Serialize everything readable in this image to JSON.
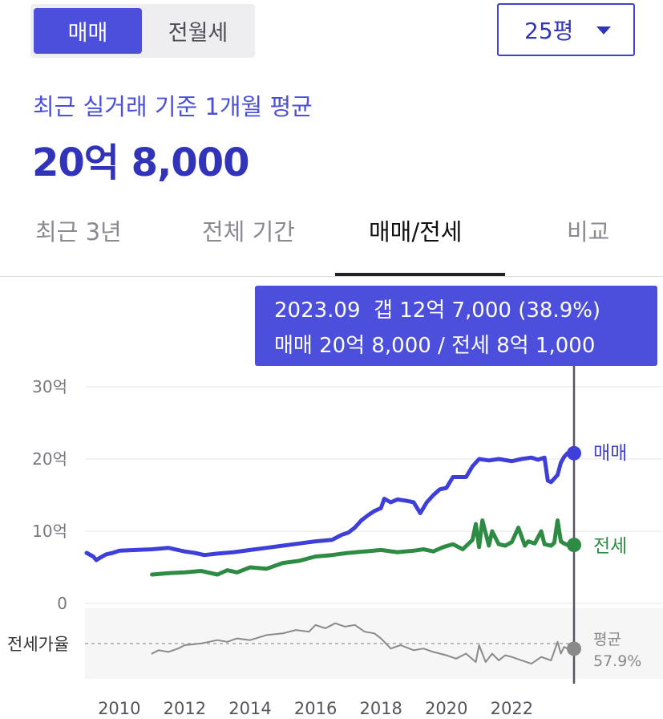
{
  "toggle": {
    "sale_label": "매매",
    "jeonse_label": "전월세"
  },
  "size_select": {
    "value": "25평"
  },
  "summary": {
    "subtitle": "최근 실거래 기준 1개월 평균",
    "price": "20억 8,000"
  },
  "tabs": [
    {
      "label": "최근 3년"
    },
    {
      "label": "전체 기간"
    },
    {
      "label": "매매/전세",
      "active": true
    },
    {
      "label": "비교"
    }
  ],
  "tooltip": {
    "line1": "2023.09  갭 12억 7,000 (38.9%)",
    "line2": "매매 20억 8,000 / 전세 8억 1,000"
  },
  "colors": {
    "sale": "#3d3fd8",
    "jeonse": "#2e8b43",
    "ratio": "#8a8a8a",
    "accent": "#4b4fdb"
  },
  "chart_data": {
    "type": "line",
    "y_unit": "억",
    "ylim": [
      0,
      30
    ],
    "yticks": [
      "30억",
      "20억",
      "10억",
      "0"
    ],
    "ytick_values": [
      30,
      20,
      10,
      0
    ],
    "xticks": [
      "2010",
      "2012",
      "2014",
      "2016",
      "2018",
      "2020",
      "2022"
    ],
    "xtick_values": [
      2010,
      2012,
      2014,
      2016,
      2018,
      2020,
      2022
    ],
    "xlim": [
      2009,
      2024
    ],
    "series": [
      {
        "name": "매매",
        "color": "#3d3fd8",
        "x": [
          2009.0,
          2009.2,
          2009.3,
          2009.4,
          2009.6,
          2009.8,
          2010.0,
          2010.5,
          2011.0,
          2011.5,
          2011.8,
          2012.0,
          2012.3,
          2012.6,
          2013.0,
          2013.5,
          2014.0,
          2014.5,
          2015.0,
          2015.5,
          2016.0,
          2016.5,
          2016.8,
          2017.0,
          2017.2,
          2017.4,
          2017.6,
          2017.8,
          2018.0,
          2018.1,
          2018.3,
          2018.5,
          2018.8,
          2019.0,
          2019.2,
          2019.4,
          2019.6,
          2019.8,
          2020.0,
          2020.2,
          2020.4,
          2020.6,
          2020.8,
          2021.0,
          2021.3,
          2021.6,
          2022.0,
          2022.3,
          2022.6,
          2022.8,
          2023.0,
          2023.1,
          2023.2,
          2023.4,
          2023.5,
          2023.6,
          2023.7
        ],
        "values": [
          7.0,
          6.5,
          6.0,
          6.3,
          6.8,
          7.0,
          7.3,
          7.4,
          7.5,
          7.7,
          7.4,
          7.2,
          7.0,
          6.7,
          6.9,
          7.1,
          7.4,
          7.7,
          8.0,
          8.3,
          8.6,
          8.8,
          9.5,
          9.8,
          10.5,
          11.5,
          12.2,
          12.8,
          13.2,
          14.5,
          14.0,
          14.4,
          14.2,
          14.0,
          12.5,
          14.0,
          15.0,
          15.8,
          16.0,
          17.5,
          17.5,
          17.5,
          19.0,
          20.0,
          19.8,
          20.0,
          19.7,
          20.0,
          20.2,
          19.9,
          20.2,
          17.0,
          16.8,
          17.8,
          19.5,
          20.3,
          20.8
        ]
      },
      {
        "name": "전세",
        "color": "#2e8b43",
        "x": [
          2011.0,
          2011.5,
          2012.0,
          2012.5,
          2013.0,
          2013.3,
          2013.6,
          2014.0,
          2014.5,
          2015.0,
          2015.5,
          2016.0,
          2016.5,
          2017.0,
          2017.5,
          2018.0,
          2018.5,
          2019.0,
          2019.3,
          2019.6,
          2019.9,
          2020.2,
          2020.5,
          2020.8,
          2020.9,
          2021.0,
          2021.1,
          2021.3,
          2021.4,
          2021.6,
          2021.8,
          2022.0,
          2022.2,
          2022.4,
          2022.5,
          2022.7,
          2022.9,
          2023.0,
          2023.2,
          2023.3,
          2023.4,
          2023.5,
          2023.6,
          2023.7
        ],
        "values": [
          4.0,
          4.2,
          4.3,
          4.5,
          4.0,
          4.6,
          4.3,
          5.0,
          4.8,
          5.6,
          5.9,
          6.5,
          6.7,
          7.0,
          7.2,
          7.4,
          7.1,
          7.3,
          7.5,
          7.2,
          7.8,
          8.2,
          7.5,
          8.8,
          11.0,
          7.8,
          11.5,
          8.0,
          10.0,
          8.2,
          8.0,
          8.5,
          10.5,
          8.0,
          8.6,
          8.3,
          10.0,
          8.2,
          8.0,
          8.4,
          11.5,
          8.6,
          8.3,
          8.1
        ]
      },
      {
        "name": "전세가율",
        "color": "#8a8a8a",
        "x": [
          2011.0,
          2011.2,
          2011.5,
          2011.8,
          2012.0,
          2012.5,
          2013.0,
          2013.3,
          2013.6,
          2014.0,
          2014.5,
          2015.0,
          2015.4,
          2015.8,
          2016.0,
          2016.3,
          2016.6,
          2016.9,
          2017.2,
          2017.5,
          2017.8,
          2018.0,
          2018.3,
          2018.6,
          2019.0,
          2019.3,
          2019.6,
          2020.0,
          2020.3,
          2020.6,
          2020.9,
          2021.0,
          2021.2,
          2021.4,
          2021.6,
          2021.8,
          2022.0,
          2022.3,
          2022.6,
          2022.9,
          2023.2,
          2023.4,
          2023.5,
          2023.6,
          2023.7
        ],
        "values": [
          55,
          57,
          56,
          58,
          60,
          61,
          63,
          62,
          64,
          63,
          66,
          67,
          69,
          68,
          72,
          70,
          73,
          71,
          72,
          68,
          67,
          64,
          58,
          60,
          57,
          58,
          56,
          54,
          52,
          55,
          50,
          60,
          50,
          55,
          51,
          54,
          53,
          51,
          49,
          53,
          51,
          62,
          55,
          59,
          57.9
        ]
      }
    ],
    "ratio_panel": {
      "label": "전세가율",
      "avg_label": "평균",
      "avg_value": "57.9%",
      "avg": 57.9,
      "ylim": [
        40,
        80
      ]
    },
    "end_labels": {
      "sale": "매매",
      "jeonse": "전세"
    }
  }
}
